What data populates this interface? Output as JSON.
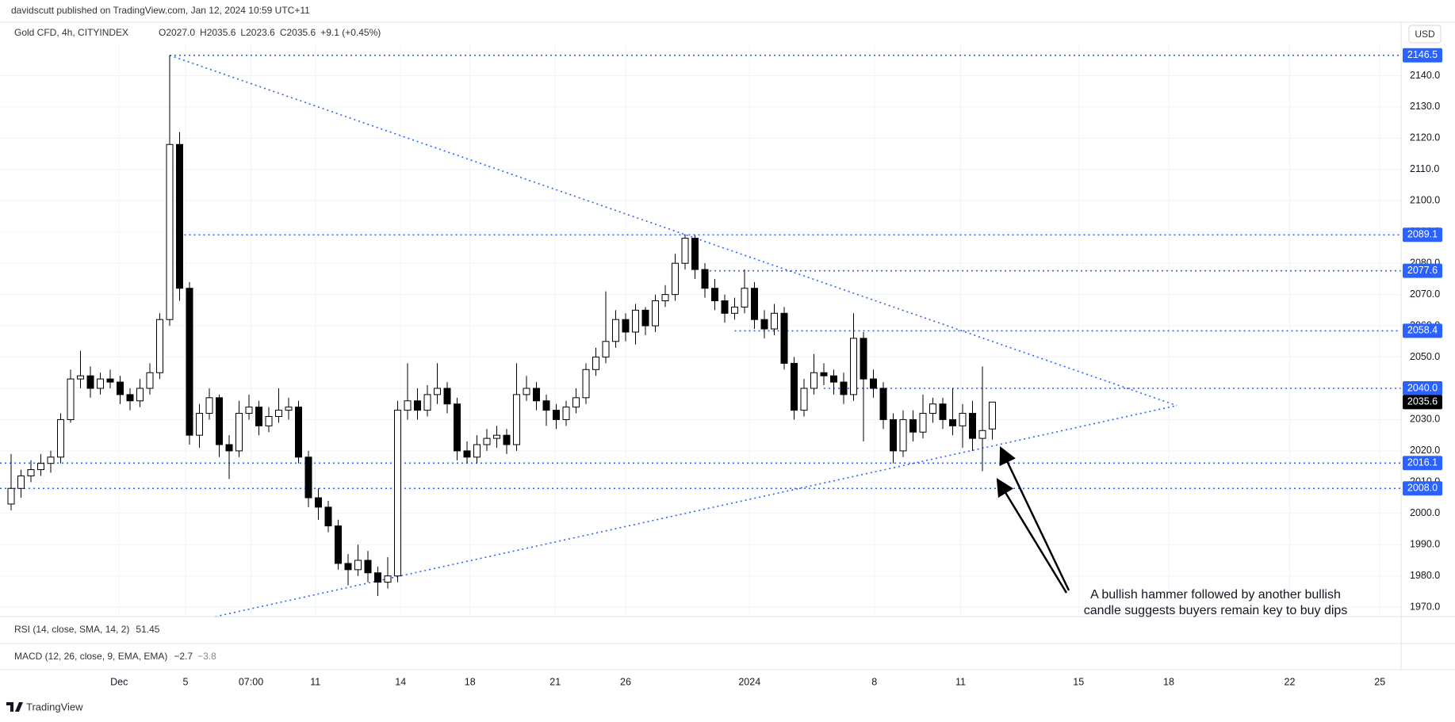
{
  "chart_data": {
    "type": "candlestick",
    "publisher": "davidscutt published on TradingView.com, Jan 12, 2024 10:59 UTC+11",
    "title": "Gold CFD, 4h, CITYINDEX",
    "legend_values": [
      "O2027.0",
      "H2035.6",
      "L2023.6",
      "C2035.6",
      "+9.1 (+0.45%)"
    ],
    "currency": "USD",
    "up_color": "#ffffff",
    "down_color": "#000000",
    "level_color": "#2962ff",
    "grid": true,
    "candles": {
      "open": [
        2003,
        2008,
        2012,
        2014,
        2016,
        2018,
        2030,
        2043,
        2044,
        2040,
        2043,
        2042,
        2038,
        2036,
        2040,
        2045,
        2062,
        2118,
        2072,
        2025,
        2032,
        2037,
        2022,
        2020,
        2032,
        2034,
        2028,
        2031,
        2033,
        2034,
        2018,
        2005,
        2002,
        1996,
        1984,
        1982,
        1985,
        1981,
        1978,
        1980,
        2033,
        2036,
        2033,
        2038,
        2040,
        2035,
        2020,
        2018,
        2022,
        2024,
        2025,
        2022,
        2038,
        2040,
        2036,
        2033,
        2030,
        2034,
        2037,
        2046,
        2050,
        2055,
        2062,
        2058,
        2065,
        2060,
        2068,
        2070,
        2080,
        2088,
        2078,
        2072,
        2068,
        2064,
        2066,
        2072,
        2062,
        2059,
        2064,
        2048,
        2033,
        2040,
        2045,
        2044,
        2042,
        2038,
        2056,
        2043,
        2040,
        2030,
        2020,
        2030,
        2026,
        2032,
        2035,
        2030,
        2028,
        2032,
        2024,
        2027.0
      ],
      "high": [
        2019,
        2014,
        2017,
        2019,
        2020,
        2032,
        2046,
        2052,
        2047,
        2045,
        2046,
        2044,
        2040,
        2043,
        2048,
        2064,
        2146.5,
        2122,
        2074,
        2035,
        2040,
        2038,
        2025,
        2036,
        2038,
        2036,
        2034,
        2040,
        2037,
        2036,
        2020,
        2008,
        2004,
        1998,
        1987,
        1990,
        1988,
        1983,
        1986,
        2036,
        2048,
        2040,
        2041,
        2048,
        2042,
        2037,
        2023,
        2025,
        2027,
        2028,
        2027,
        2048,
        2044,
        2042,
        2038,
        2035,
        2036,
        2040,
        2048,
        2053,
        2071,
        2065,
        2064,
        2067,
        2066,
        2070,
        2073,
        2083,
        2089.1,
        2089,
        2080,
        2075,
        2070,
        2069,
        2078,
        2074,
        2065,
        2067,
        2066,
        2050,
        2043,
        2051,
        2048,
        2046,
        2045,
        2064,
        2058,
        2046,
        2042,
        2032,
        2033,
        2033,
        2038,
        2037,
        2037,
        2040,
        2035,
        2036,
        2047,
        2035.6
      ],
      "low": [
        2001,
        2005,
        2010,
        2012,
        2013,
        2016,
        2029,
        2040,
        2037,
        2038,
        2040,
        2035,
        2033,
        2034,
        2038,
        2043,
        2060,
        2068,
        2022,
        2021,
        2030,
        2018,
        2011,
        2018,
        2030,
        2025,
        2026,
        2029,
        2030,
        2016,
        2002,
        1998,
        1994,
        1982,
        1977,
        1980,
        1978,
        1973.6,
        1976,
        1978,
        2030,
        2030,
        2031,
        2035,
        2032,
        2017,
        2016,
        2016,
        2020,
        2021,
        2019,
        2020,
        2036,
        2033,
        2028,
        2027,
        2028,
        2032,
        2035,
        2044,
        2048,
        2053,
        2055,
        2054,
        2057,
        2058,
        2066,
        2068,
        2078,
        2075,
        2069,
        2065,
        2061,
        2062,
        2064,
        2059,
        2056,
        2057,
        2046,
        2030,
        2031,
        2038,
        2041,
        2038,
        2035,
        2036,
        2023,
        2037,
        2027,
        2016,
        2018,
        2023,
        2024,
        2029,
        2027,
        2025,
        2021,
        2020,
        2013.5,
        2023.6
      ],
      "close": [
        2008,
        2012,
        2014,
        2016,
        2018,
        2030,
        2043,
        2044,
        2040,
        2043,
        2042,
        2038,
        2036,
        2040,
        2045,
        2062,
        2118,
        2072,
        2025,
        2032,
        2037,
        2022,
        2020,
        2032,
        2034,
        2028,
        2031,
        2033,
        2034,
        2018,
        2005,
        2002,
        1996,
        1984,
        1982,
        1985,
        1981,
        1978,
        1980,
        2033,
        2036,
        2033,
        2038,
        2040,
        2035,
        2020,
        2018,
        2022,
        2024,
        2025,
        2022,
        2038,
        2040,
        2036,
        2033,
        2030,
        2034,
        2037,
        2046,
        2050,
        2055,
        2062,
        2058,
        2065,
        2060,
        2068,
        2070,
        2080,
        2088,
        2078,
        2072,
        2068,
        2064,
        2066,
        2072,
        2062,
        2059,
        2064,
        2048,
        2033,
        2040,
        2045,
        2044,
        2042,
        2038,
        2056,
        2043,
        2040,
        2030,
        2020,
        2030,
        2026,
        2032,
        2035,
        2030,
        2028,
        2032,
        2024,
        2026.5,
        2035.6
      ]
    },
    "xlim": [
      -1.12,
      140.24
    ],
    "xticks": [
      {
        "value": 10.9,
        "label": "Dec"
      },
      {
        "value": 17.6,
        "label": "5"
      },
      {
        "value": 24.2,
        "label": "07:00"
      },
      {
        "value": 30.7,
        "label": "11"
      },
      {
        "value": 39.3,
        "label": "14"
      },
      {
        "value": 46.3,
        "label": "18"
      },
      {
        "value": 54.9,
        "label": "21"
      },
      {
        "value": 62,
        "label": "26"
      },
      {
        "value": 74.5,
        "label": "2024"
      },
      {
        "value": 87.1,
        "label": "8"
      },
      {
        "value": 95.8,
        "label": "11"
      },
      {
        "value": 107.7,
        "label": "15"
      },
      {
        "value": 116.8,
        "label": "18"
      },
      {
        "value": 129,
        "label": "22"
      },
      {
        "value": 138.1,
        "label": "25"
      }
    ],
    "ylim": [
      1967,
      2150
    ],
    "yticks": [
      {
        "value": 1970,
        "label": "1970.0"
      },
      {
        "value": 1980,
        "label": "1980.0"
      },
      {
        "value": 1990,
        "label": "1990.0"
      },
      {
        "value": 2000,
        "label": "2000.0"
      },
      {
        "value": 2010,
        "label": "2010.0"
      },
      {
        "value": 2020,
        "label": "2020.0"
      },
      {
        "value": 2030,
        "label": "2030.0"
      },
      {
        "value": 2040,
        "label": "2040.0"
      },
      {
        "value": 2050,
        "label": "2050.0"
      },
      {
        "value": 2060,
        "label": "2060.0"
      },
      {
        "value": 2070,
        "label": "2070.0"
      },
      {
        "value": 2080,
        "label": "2080.0"
      },
      {
        "value": 2090,
        "label": "2090.0"
      },
      {
        "value": 2100,
        "label": "2100.0"
      },
      {
        "value": 2110,
        "label": "2110.0"
      },
      {
        "value": 2120,
        "label": "2120.0"
      },
      {
        "value": 2130,
        "label": "2130.0"
      },
      {
        "value": 2140,
        "label": "2140.0"
      }
    ],
    "levels": [
      {
        "value": 2146.5,
        "label": "2146.5",
        "x": 16
      },
      {
        "value": 2089.1,
        "label": "2089.1",
        "x": 17
      },
      {
        "value": 2077.6,
        "label": "2077.6",
        "x": 70
      },
      {
        "value": 2058.4,
        "label": "2058.4",
        "x": 73
      },
      {
        "value": 2040.0,
        "label": "2040.0",
        "x": 82
      },
      {
        "value": 2016.1,
        "label": "2016.1",
        "x": -1.12
      },
      {
        "value": 2008.0,
        "label": "2008.0",
        "x": -1.12
      }
    ],
    "current_price": {
      "value": 2035.6,
      "label": "2035.6"
    },
    "trendlines": [
      {
        "x": [
          16,
          117.6
        ],
        "y": [
          2146.5,
          2034.5
        ]
      },
      {
        "x": [
          20.6,
          117.6
        ],
        "y": [
          1967,
          2034.5
        ]
      }
    ],
    "annotation": [
      "A bullish hammer followed by another bullish",
      "candle suggests buyers remain key to buy dips"
    ],
    "indicators": [
      {
        "label": "RSI (14, close, SMA, 14, 2)",
        "values": [
          "51.45"
        ]
      },
      {
        "label": "MACD (12, 26, close, 9, EMA, EMA)",
        "values": [
          "−2.7",
          "−3.8"
        ]
      }
    ],
    "footer": "TradingView"
  }
}
